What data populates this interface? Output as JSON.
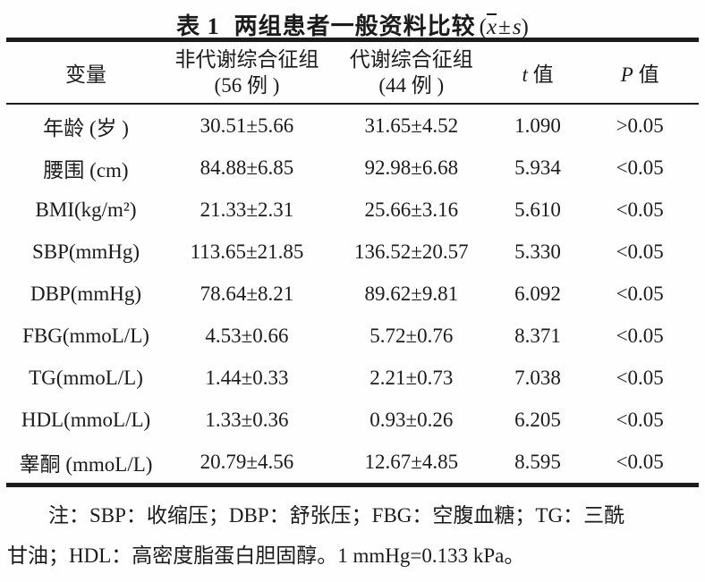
{
  "title": {
    "label": "表 1",
    "text": "两组患者一般资料比较",
    "formula": {
      "open": "(",
      "xbar": "x",
      "pm": "±",
      "s": "s",
      "close": ")"
    }
  },
  "table": {
    "header": {
      "variable": "变量",
      "group1_line1": "非代谢综合征组",
      "group1_line2": "(56 例 )",
      "group2_line1": "代谢综合征组",
      "group2_line2": "(44 例 )",
      "t_symbol": "t",
      "t_label": " 值",
      "p_symbol": "P",
      "p_label": " 值"
    },
    "rows": [
      [
        "年龄 (岁 )",
        "30.51±5.66",
        "31.65±4.52",
        "1.090",
        ">0.05"
      ],
      [
        "腰围 (cm)",
        "84.88±6.85",
        "92.98±6.68",
        "5.934",
        "<0.05"
      ],
      [
        "BMI(kg/m²)",
        "21.33±2.31",
        "25.66±3.16",
        "5.610",
        "<0.05"
      ],
      [
        "SBP(mmHg)",
        "113.65±21.85",
        "136.52±20.57",
        "5.330",
        "<0.05"
      ],
      [
        "DBP(mmHg)",
        "78.64±8.21",
        "89.62±9.81",
        "6.092",
        "<0.05"
      ],
      [
        "FBG(mmoL/L)",
        "4.53±0.66",
        "5.72±0.76",
        "8.371",
        "<0.05"
      ],
      [
        "TG(mmoL/L)",
        "1.44±0.33",
        "2.21±0.73",
        "7.038",
        "<0.05"
      ],
      [
        "HDL(mmoL/L)",
        "1.33±0.36",
        "0.93±0.26",
        "6.205",
        "<0.05"
      ],
      [
        "睾酮 (mmoL/L)",
        "20.79±4.56",
        "12.67±4.85",
        "8.595",
        "<0.05"
      ]
    ]
  },
  "note": {
    "line1": "注：SBP：收缩压；DBP：舒张压；FBG：空腹血糖；TG：三酰",
    "line2": "甘油；HDL：高密度脂蛋白胆固醇。1 mmHg=0.133 kPa。"
  }
}
